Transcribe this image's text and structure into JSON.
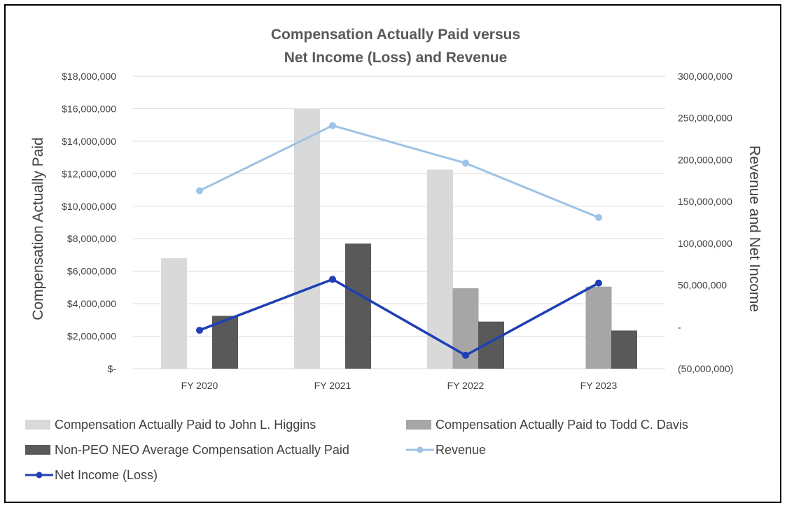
{
  "chart_data": {
    "type": "bar",
    "title": [
      "Compensation Actually Paid versus",
      "Net Income (Loss) and Revenue"
    ],
    "categories": [
      "FY 2020",
      "FY 2021",
      "FY 2022",
      "FY 2023"
    ],
    "ylabel": "Compensation Actually Paid",
    "y2label": "Revenue and Net Income",
    "ylim": [
      0,
      18000000
    ],
    "y2lim": [
      -50000000,
      300000000
    ],
    "yticks": [
      {
        "value": 0,
        "label": "$-"
      },
      {
        "value": 2000000,
        "label": "$2,000,000"
      },
      {
        "value": 4000000,
        "label": "$4,000,000"
      },
      {
        "value": 6000000,
        "label": "$6,000,000"
      },
      {
        "value": 8000000,
        "label": "$8,000,000"
      },
      {
        "value": 10000000,
        "label": "$10,000,000"
      },
      {
        "value": 12000000,
        "label": "$12,000,000"
      },
      {
        "value": 14000000,
        "label": "$14,000,000"
      },
      {
        "value": 16000000,
        "label": "$16,000,000"
      },
      {
        "value": 18000000,
        "label": "$18,000,000"
      }
    ],
    "y2ticks": [
      {
        "value": -50000000,
        "label": "(50,000,000)"
      },
      {
        "value": 0,
        "label": "-"
      },
      {
        "value": 50000000,
        "label": "50,000,000"
      },
      {
        "value": 100000000,
        "label": "100,000,000"
      },
      {
        "value": 150000000,
        "label": "150,000,000"
      },
      {
        "value": 200000000,
        "label": "200,000,000"
      },
      {
        "value": 250000000,
        "label": "250,000,000"
      },
      {
        "value": 300000000,
        "label": "300,000,000"
      }
    ],
    "bar_series": [
      {
        "name": "Compensation Actually Paid to John L. Higgins",
        "color": "#d9d9d9",
        "values": [
          6800000,
          16000000,
          12250000,
          null
        ]
      },
      {
        "name": "Compensation Actually Paid to Todd C. Davis",
        "color": "#a6a6a6",
        "values": [
          null,
          null,
          4950000,
          5050000
        ]
      },
      {
        "name": "Non-PEO NEO Average Compensation Actually Paid",
        "color": "#595959",
        "values": [
          3250000,
          7700000,
          2900000,
          2350000
        ]
      }
    ],
    "line_series": [
      {
        "name": "Revenue",
        "color": "#9dc3e6",
        "axis": "right",
        "values": [
          163000000,
          241000000,
          196000000,
          131000000
        ]
      },
      {
        "name": "Net Income (Loss)",
        "color": "#1f3fb5",
        "axis": "right",
        "values": [
          -4000000,
          57000000,
          -34000000,
          52500000
        ]
      }
    ],
    "legend": [
      {
        "name": "Compensation Actually Paid to John L. Higgins",
        "kind": "bar",
        "color": "#d9d9d9"
      },
      {
        "name": "Compensation Actually Paid to Todd C. Davis",
        "kind": "bar",
        "color": "#a6a6a6"
      },
      {
        "name": "Non-PEO NEO Average Compensation Actually Paid",
        "kind": "bar",
        "color": "#595959"
      },
      {
        "name": "Revenue",
        "kind": "line",
        "color": "#9dc3e6"
      },
      {
        "name": "Net Income (Loss)",
        "kind": "line",
        "color": "#1f3fb5"
      }
    ],
    "legend_position": "bottom",
    "grid": true
  }
}
